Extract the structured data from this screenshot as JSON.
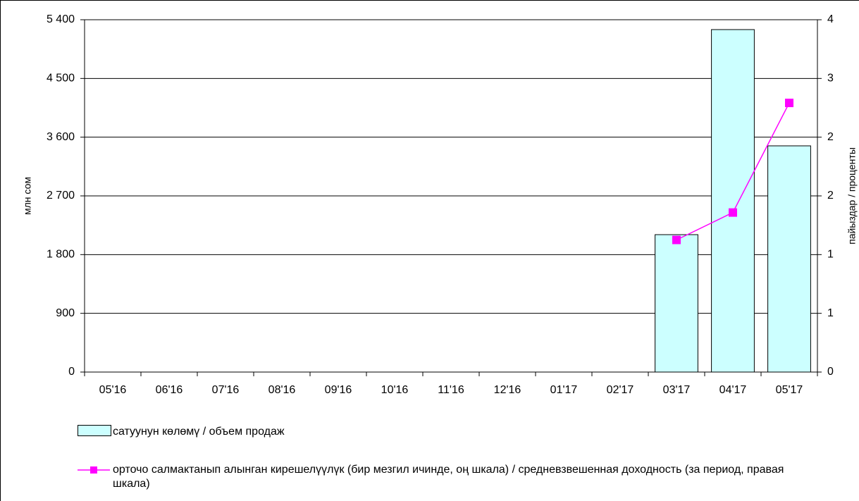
{
  "chart_data": {
    "type": "bar_line",
    "ylabel": "млн сом",
    "y2label": "пайыздар / проценты",
    "categories": [
      "05'16",
      "06'16",
      "07'16",
      "08'16",
      "09'16",
      "10'16",
      "11'16",
      "12'16",
      "01'17",
      "02'17",
      "03'17",
      "04'17",
      "05'17"
    ],
    "series": [
      {
        "name": "сатуунун көлөмү /  объем продаж",
        "type": "bar",
        "color": "#ccffff",
        "values": [
          null,
          null,
          null,
          null,
          null,
          null,
          null,
          null,
          null,
          null,
          2106,
          5249,
          3467
        ]
      },
      {
        "name": "орточо салмактанып алынган кирешелүүлүк (бир мезгил ичинде, оң шкала) / средневзвешенная доходность (за период, правая шкала)",
        "type": "line",
        "color": "#ff00ff",
        "axis": "y2",
        "values": [
          null,
          null,
          null,
          null,
          null,
          null,
          null,
          null,
          null,
          null,
          1.35,
          1.63,
          2.75
        ]
      }
    ],
    "ylim": [
      0,
      5400
    ],
    "yticks": [
      0,
      900,
      {
        "value": 1800,
        "label": "1 800"
      },
      {
        "value": 2700,
        "label": "2 700"
      },
      {
        "value": 3600,
        "label": "3 600"
      },
      {
        "value": 4500,
        "label": "4 500"
      },
      {
        "value": 5400,
        "label": "5 400"
      }
    ],
    "y2lim": [
      0,
      3.6
    ],
    "y2ticks": [
      0,
      {
        "value": 0.6,
        "label": "1"
      },
      {
        "value": 1.2,
        "label": "1"
      },
      {
        "value": 1.8,
        "label": "2"
      },
      {
        "value": 2.4,
        "label": "2"
      },
      {
        "value": 3,
        "label": "3"
      },
      {
        "value": 3.6,
        "label": "4"
      }
    ],
    "grid": true
  }
}
